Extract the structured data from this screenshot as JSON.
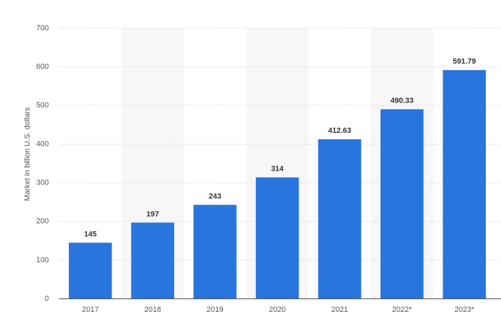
{
  "chart_data": {
    "type": "bar",
    "y_label": "Market in billion U.S. dollars",
    "categories": [
      "2017",
      "2018",
      "2019",
      "2020",
      "2021",
      "2022*",
      "2023*"
    ],
    "values": [
      145,
      197,
      243,
      314,
      412.63,
      490.33,
      591.79
    ],
    "color": "#2876dd",
    "ylim": [
      0,
      700
    ],
    "yticks": [
      0,
      100,
      200,
      300,
      400,
      500,
      600,
      700
    ],
    "grid": true
  }
}
